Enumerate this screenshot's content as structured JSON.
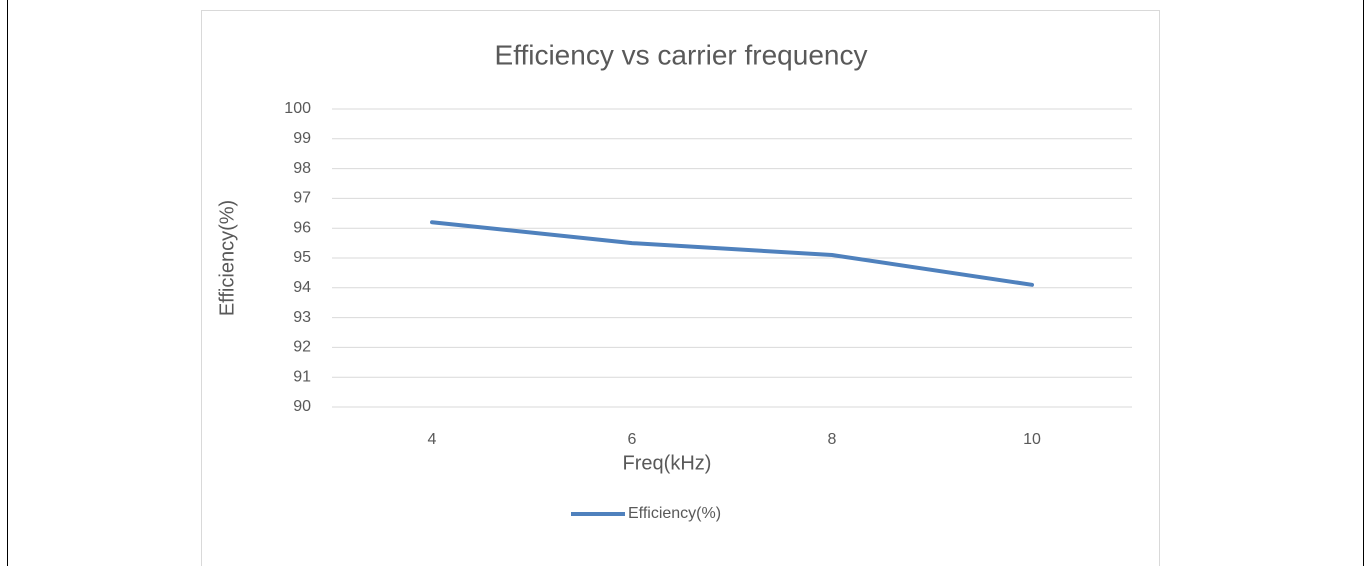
{
  "chart_data": {
    "type": "line",
    "title": "Efficiency vs carrier frequency",
    "x_label": "Freq(kHz)",
    "y_label": "Efficiency(%)",
    "categories": [
      "4",
      "6",
      "8",
      "10"
    ],
    "series": [
      {
        "name": "Efficiency(%)",
        "color": "#4f81bd",
        "values": [
          96.2,
          95.5,
          95.1,
          94.1
        ]
      }
    ],
    "ylim": [
      90,
      100
    ],
    "yticks": [
      90,
      91,
      92,
      93,
      94,
      95,
      96,
      97,
      98,
      99,
      100
    ],
    "grid": true,
    "legend": "bottom"
  }
}
